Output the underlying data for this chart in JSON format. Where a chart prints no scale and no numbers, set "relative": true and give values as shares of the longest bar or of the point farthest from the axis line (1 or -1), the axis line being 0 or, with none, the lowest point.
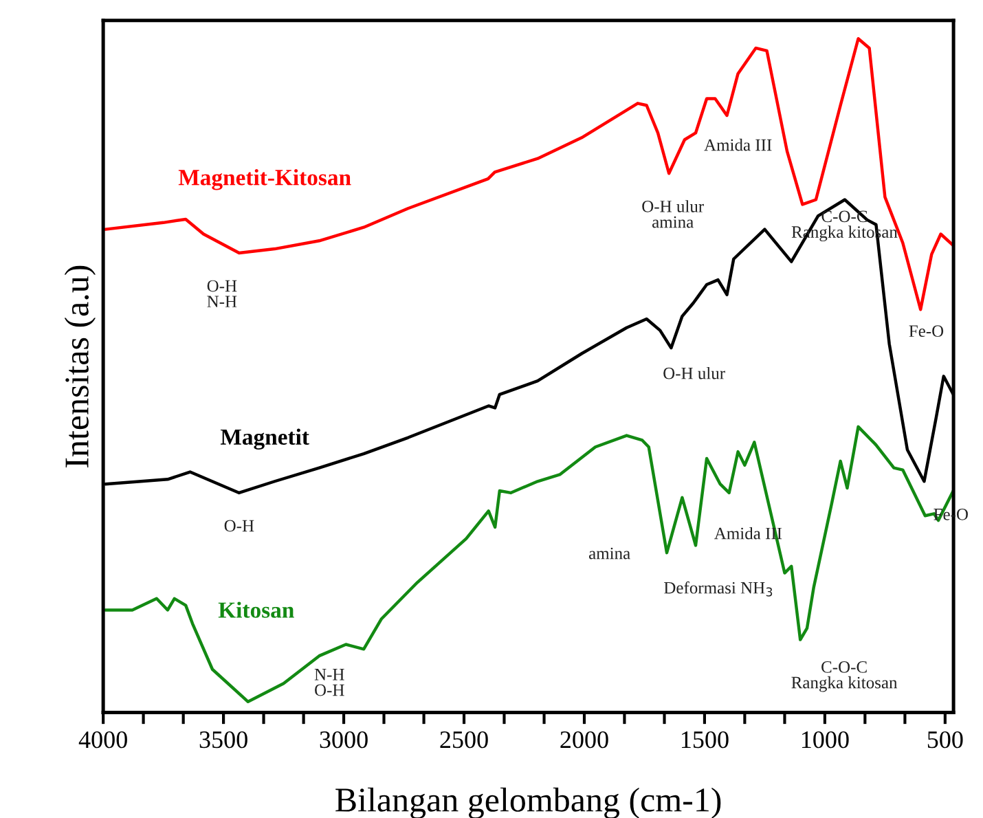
{
  "chart_data": {
    "type": "line",
    "relative": true,
    "xlabel": "Bilangan gelombang (cm-1)",
    "ylabel": "Intensitas (a.u)",
    "xlim": [
      4000,
      465
    ],
    "xticks": [
      4000,
      {
        "value": 3833,
        "label": null
      },
      {
        "value": 3667,
        "label": null
      },
      3500,
      {
        "value": 3333,
        "label": null
      },
      {
        "value": 3167,
        "label": null
      },
      3000,
      {
        "value": 2833,
        "label": null
      },
      {
        "value": 2667,
        "label": null
      },
      2500,
      {
        "value": 2333,
        "label": null
      },
      {
        "value": 2167,
        "label": null
      },
      2000,
      {
        "value": 1833,
        "label": null
      },
      {
        "value": 1667,
        "label": null
      },
      1500,
      {
        "value": 1333,
        "label": null
      },
      {
        "value": 1167,
        "label": null
      },
      1000,
      {
        "value": 833,
        "label": null
      },
      {
        "value": 667,
        "label": null
      },
      500
    ],
    "grid": false,
    "legend": false,
    "marker": "none",
    "line_style": "solid",
    "series": [
      {
        "name": "Magnetit-Kitosan",
        "color": "#ff0000",
        "x": [
          3991,
          3750,
          3657,
          3583,
          3435,
          3287,
          3102,
          2917,
          2733,
          2400,
          2372,
          2194,
          2011,
          1778,
          1741,
          1694,
          1648,
          1583,
          1537,
          1491,
          1456,
          1407,
          1361,
          1287,
          1241,
          1157,
          1093,
          1037,
          935,
          861,
          815,
          750,
          676,
          602,
          556,
          518,
          466
        ],
        "values": [
          0.717,
          0.727,
          0.732,
          0.71,
          0.682,
          0.688,
          0.7,
          0.72,
          0.748,
          0.792,
          0.802,
          0.822,
          0.853,
          0.904,
          0.901,
          0.86,
          0.8,
          0.85,
          0.86,
          0.911,
          0.911,
          0.886,
          0.948,
          0.986,
          0.982,
          0.833,
          0.754,
          0.761,
          0.901,
          1.0,
          0.986,
          0.765,
          0.697,
          0.598,
          0.68,
          0.71,
          0.693
        ]
      },
      {
        "name": "Magnetit",
        "color": "#000000",
        "x": [
          3991,
          3732,
          3639,
          3435,
          3287,
          3102,
          2917,
          2732,
          2398,
          2371,
          2352,
          2194,
          2009,
          1824,
          1741,
          1685,
          1639,
          1593,
          1546,
          1491,
          1444,
          1407,
          1379,
          1250,
          1139,
          1028,
          917,
          824,
          787,
          732,
          657,
          587,
          537,
          506,
          466
        ],
        "values": [
          0.339,
          0.346,
          0.357,
          0.326,
          0.343,
          0.363,
          0.384,
          0.408,
          0.455,
          0.452,
          0.472,
          0.492,
          0.533,
          0.571,
          0.584,
          0.567,
          0.541,
          0.588,
          0.608,
          0.635,
          0.642,
          0.62,
          0.673,
          0.717,
          0.669,
          0.737,
          0.761,
          0.731,
          0.724,
          0.547,
          0.39,
          0.343,
          0.438,
          0.499,
          0.472
        ]
      },
      {
        "name": "Kitosan",
        "color": "#138a13",
        "x": [
          3991,
          3879,
          3778,
          3732,
          3704,
          3657,
          3629,
          3546,
          3398,
          3250,
          3102,
          2991,
          2917,
          2843,
          2694,
          2491,
          2398,
          2371,
          2352,
          2306,
          2194,
          2102,
          1954,
          1824,
          1759,
          1732,
          1657,
          1593,
          1537,
          1491,
          1435,
          1398,
          1361,
          1333,
          1293,
          1167,
          1139,
          1102,
          1074,
          1046,
          972,
          935,
          907,
          861,
          787,
          713,
          676,
          583,
          546,
          528,
          466
        ],
        "values": [
          0.152,
          0.152,
          0.169,
          0.152,
          0.169,
          0.159,
          0.132,
          0.064,
          0.016,
          0.043,
          0.084,
          0.101,
          0.094,
          0.139,
          0.193,
          0.258,
          0.299,
          0.275,
          0.329,
          0.326,
          0.343,
          0.353,
          0.394,
          0.411,
          0.404,
          0.394,
          0.237,
          0.319,
          0.248,
          0.377,
          0.339,
          0.326,
          0.387,
          0.367,
          0.401,
          0.207,
          0.217,
          0.108,
          0.125,
          0.186,
          0.309,
          0.373,
          0.333,
          0.424,
          0.397,
          0.363,
          0.36,
          0.292,
          0.295,
          0.285,
          0.329
        ]
      }
    ],
    "annotations": [
      {
        "text": "O-H\nN-H",
        "x": 3435,
        "y": 0.682
      },
      {
        "text": "O-H ulur\namina",
        "x": 1648,
        "y": 0.8
      },
      {
        "text": "Amida III",
        "x": 1456,
        "y": 0.911
      },
      {
        "text": "C-O-C\nRangka kitosan",
        "x": 1093,
        "y": 0.754
      },
      {
        "text": "Fe-O",
        "x": 602,
        "y": 0.598
      },
      {
        "text": "O-H",
        "x": 3435,
        "y": 0.326
      },
      {
        "text": "O-H ulur",
        "x": 1639,
        "y": 0.541
      },
      {
        "text": "Fe-O",
        "x": 587,
        "y": 0.343
      },
      {
        "text": "amina",
        "x": 1657,
        "y": 0.237
      },
      {
        "text": "Deformasi NH$_{3}$",
        "x": 1537,
        "y": 0.248
      },
      {
        "text": "Amida III",
        "x": 1398,
        "y": 0.326
      },
      {
        "text": "C-O-C\nRangka kitosan",
        "x": 1102,
        "y": 0.108
      },
      {
        "text": "N-H\nO-H",
        "x": 3250,
        "y": 0.043
      }
    ]
  }
}
